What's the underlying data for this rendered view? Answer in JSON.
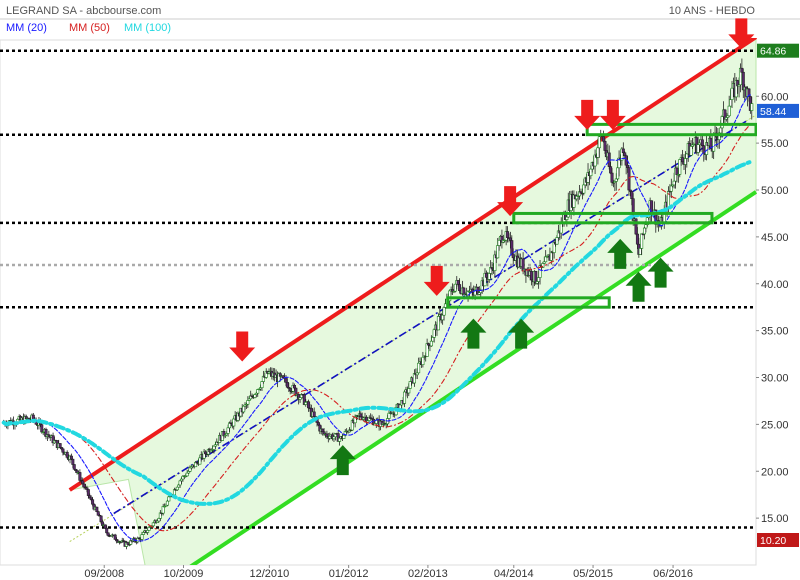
{
  "header": {
    "title": "LEGRAND SA - abcbourse.com",
    "period": "10 ANS - HEBDO"
  },
  "legend": [
    {
      "label": "MM (20)",
      "color": "#1a1aff"
    },
    {
      "label": "MM (50)",
      "color": "#d62020"
    },
    {
      "label": "MM (100)",
      "color": "#22d8e0"
    }
  ],
  "price_labels": {
    "high": "64.86",
    "last": "58.44",
    "low": "10.20"
  },
  "colors": {
    "channel_upper": "#ee1c1c",
    "channel_lower": "#33dd22",
    "channel_fill": "#ddf7d3",
    "arrow_down": "#ee1c1c",
    "arrow_up": "#137813",
    "support_box": "#22aa22",
    "high_badge": "#1e7e1e",
    "last_badge": "#1f5fd6",
    "low_badge": "#c01818"
  },
  "chart_data": {
    "type": "candlestick",
    "title": "LEGRAND SA - abcbourse.com",
    "subtitle": "10 ANS - HEBDO",
    "ylim": [
      10,
      66
    ],
    "yticks": [
      "15.00",
      "20.00",
      "25.00",
      "30.00",
      "35.00",
      "40.00",
      "45.00",
      "50.00",
      "55.00",
      "60.00"
    ],
    "ytick_values": [
      15,
      20,
      25,
      30,
      35,
      40,
      45,
      50,
      55,
      60
    ],
    "xticks": [
      "09/2008",
      "10/2009",
      "12/2010",
      "01/2012",
      "02/2013",
      "04/2014",
      "05/2015",
      "06/2016"
    ],
    "xtick_years": [
      2008.67,
      2009.75,
      2010.92,
      2012.0,
      2013.08,
      2014.25,
      2015.33,
      2016.42
    ],
    "x_range": [
      2007.25,
      2017.55
    ],
    "price_path": [
      [
        2007.3,
        25.2
      ],
      [
        2007.7,
        25.6
      ],
      [
        2007.95,
        23.5
      ],
      [
        2008.2,
        21.5
      ],
      [
        2008.45,
        17.5
      ],
      [
        2008.7,
        13.5
      ],
      [
        2008.95,
        12.2
      ],
      [
        2009.15,
        12.8
      ],
      [
        2009.4,
        15.0
      ],
      [
        2009.7,
        19.0
      ],
      [
        2010.0,
        21.5
      ],
      [
        2010.3,
        24.0
      ],
      [
        2010.6,
        27.0
      ],
      [
        2010.9,
        30.5
      ],
      [
        2011.15,
        29.5
      ],
      [
        2011.4,
        27.5
      ],
      [
        2011.65,
        24.0
      ],
      [
        2011.9,
        23.5
      ],
      [
        2012.15,
        26.0
      ],
      [
        2012.45,
        25.0
      ],
      [
        2012.7,
        27.0
      ],
      [
        2012.95,
        31.0
      ],
      [
        2013.2,
        35.5
      ],
      [
        2013.45,
        40.0
      ],
      [
        2013.7,
        38.8
      ],
      [
        2013.95,
        41.5
      ],
      [
        2014.1,
        45.5
      ],
      [
        2014.3,
        42.5
      ],
      [
        2014.55,
        40.5
      ],
      [
        2014.75,
        43.0
      ],
      [
        2015.0,
        48.5
      ],
      [
        2015.25,
        51.0
      ],
      [
        2015.45,
        56.0
      ],
      [
        2015.6,
        50.5
      ],
      [
        2015.75,
        55.0
      ],
      [
        2015.95,
        43.0
      ],
      [
        2016.1,
        48.5
      ],
      [
        2016.25,
        46.0
      ],
      [
        2016.45,
        52.0
      ],
      [
        2016.7,
        55.0
      ],
      [
        2016.95,
        54.5
      ],
      [
        2017.1,
        57.5
      ],
      [
        2017.35,
        62.5
      ],
      [
        2017.5,
        58.4
      ]
    ],
    "moving_averages": [
      {
        "name": "MM (20)",
        "color": "#1a1aff",
        "window": 20
      },
      {
        "name": "MM (50)",
        "color": "#d62020",
        "window": 50
      },
      {
        "name": "MM (100)",
        "color": "#22d8e0",
        "window": 100
      }
    ],
    "channel": {
      "upper": [
        [
          2008.2,
          18.0
        ],
        [
          2017.55,
          66.3
        ]
      ],
      "lower": [
        [
          2009.3,
          7.0
        ],
        [
          2017.55,
          49.8
        ]
      ],
      "mid": [
        [
          2008.2,
          12.5
        ],
        [
          2017.55,
          58.0
        ]
      ]
    },
    "trend_line": [
      [
        2008.8,
        15.5
      ],
      [
        2017.45,
        57.5
      ]
    ],
    "horizontal_levels": [
      {
        "value": 64.86,
        "color": "#000000"
      },
      {
        "value": 55.9,
        "color": "#000000"
      },
      {
        "value": 46.5,
        "color": "#000000"
      },
      {
        "value": 42.0,
        "color": "#aaaaaa"
      },
      {
        "value": 37.5,
        "color": "#000000"
      },
      {
        "value": 14.0,
        "color": "#000000"
      }
    ],
    "support_boxes": [
      {
        "x": [
          2013.35,
          2015.55
        ],
        "y": [
          37.5,
          38.5
        ]
      },
      {
        "x": [
          2014.25,
          2016.95
        ],
        "y": [
          46.5,
          47.5
        ]
      },
      {
        "x": [
          2015.25,
          2017.55
        ],
        "y": [
          55.9,
          57.0
        ]
      }
    ],
    "down_arrows": [
      {
        "x": 2010.55,
        "y": 31.5
      },
      {
        "x": 2013.2,
        "y": 38.5
      },
      {
        "x": 2014.2,
        "y": 47.0
      },
      {
        "x": 2015.25,
        "y": 56.2
      },
      {
        "x": 2015.6,
        "y": 56.2
      },
      {
        "x": 2017.35,
        "y": 64.9
      }
    ],
    "up_arrows": [
      {
        "x": 2011.92,
        "y": 23.0
      },
      {
        "x": 2013.7,
        "y": 36.5
      },
      {
        "x": 2014.35,
        "y": 36.5
      },
      {
        "x": 2015.7,
        "y": 45.0
      },
      {
        "x": 2015.95,
        "y": 41.5
      },
      {
        "x": 2016.25,
        "y": 43.0
      }
    ],
    "last": 58.44,
    "high": 64.86,
    "low": 10.2
  }
}
